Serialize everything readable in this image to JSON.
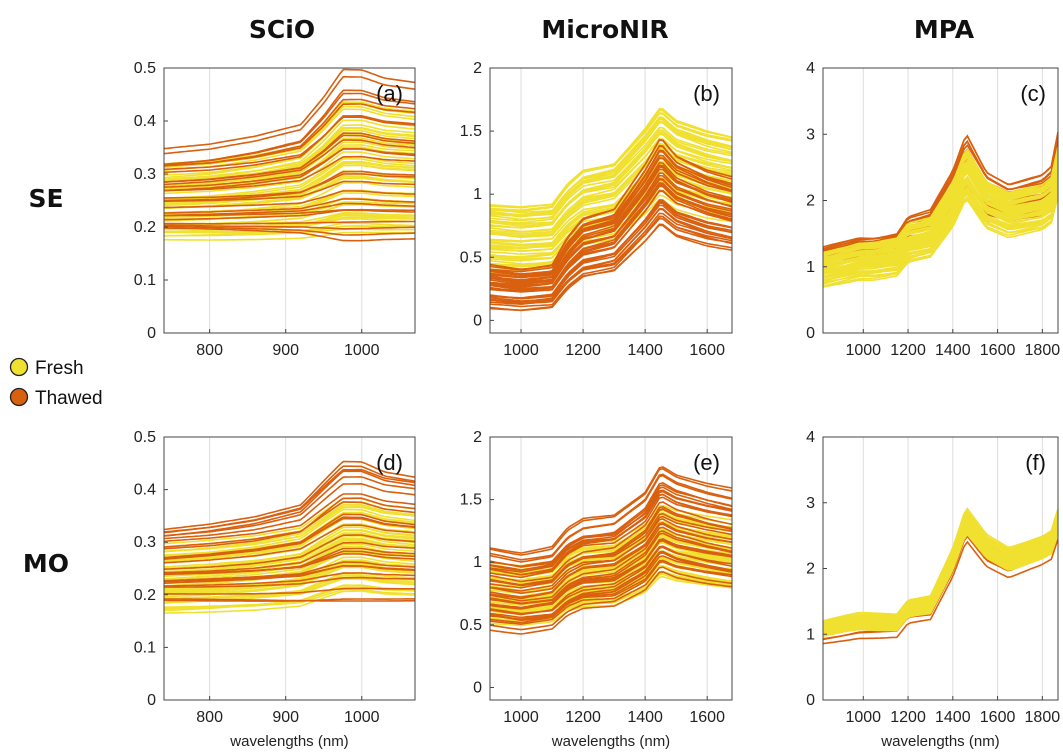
{
  "column_titles": [
    "SCiO",
    "MicroNIR",
    "MPA"
  ],
  "row_titles": [
    "SE",
    "MO"
  ],
  "legend": [
    {
      "label": "Fresh",
      "color": "#f0e030"
    },
    {
      "label": "Thawed",
      "color": "#d9600f"
    }
  ],
  "chart_data": [
    {
      "panel": "(a)",
      "type": "line",
      "xlabel": "",
      "xlim": [
        740,
        1070
      ],
      "ylim": [
        0,
        0.5
      ],
      "xticks": [
        800,
        900,
        1000
      ],
      "yticks": [
        0,
        0.1,
        0.2,
        0.3,
        0.4,
        0.5
      ],
      "xtick_labels": [
        "800",
        "900",
        "1000"
      ],
      "ytick_labels": [
        "0",
        "0.1",
        "0.2",
        "0.3",
        "0.4",
        "0.5"
      ],
      "shape": {
        "x": [
          740,
          800,
          860,
          920,
          950,
          975,
          1000,
          1030,
          1070
        ],
        "y": [
          1.0,
          0.99,
          0.97,
          0.94,
          0.87,
          0.8,
          0.8,
          0.82,
          0.83
        ]
      },
      "series": [
        {
          "color": "#f0e030",
          "count": 55,
          "start": [
            0.19,
            0.43
          ],
          "end": [
            0.18,
            0.31
          ]
        },
        {
          "color": "#d9600f",
          "count": 26,
          "start": [
            0.17,
            0.49
          ],
          "end": [
            0.19,
            0.34
          ]
        }
      ]
    },
    {
      "panel": "(b)",
      "type": "line",
      "xlabel": "",
      "xlim": [
        900,
        1680
      ],
      "ylim": [
        -0.1,
        2
      ],
      "xticks": [
        1000,
        1200,
        1400,
        1600
      ],
      "yticks": [
        0,
        0.5,
        1,
        1.5,
        2
      ],
      "xtick_labels": [
        "1000",
        "1200",
        "1400",
        "1600"
      ],
      "ytick_labels": [
        "0",
        "0.5",
        "1",
        "1.5",
        "2"
      ],
      "shape": {
        "x": [
          900,
          1000,
          1100,
          1150,
          1200,
          1300,
          1400,
          1450,
          1500,
          1600,
          1680
        ],
        "y": [
          0.3,
          0.28,
          0.3,
          0.45,
          0.55,
          0.6,
          0.85,
          1.0,
          0.9,
          0.82,
          0.78
        ]
      },
      "series": [
        {
          "color": "#f0e030",
          "count": 50,
          "start": [
            0.4,
            0.9
          ],
          "end": [
            1.0,
            1.7
          ]
        },
        {
          "color": "#d9600f",
          "count": 38,
          "start": [
            0.1,
            0.4
          ],
          "end": [
            0.78,
            1.45
          ]
        }
      ]
    },
    {
      "panel": "(c)",
      "type": "line",
      "xlabel": "",
      "xlim": [
        820,
        1870
      ],
      "ylim": [
        0,
        4
      ],
      "xticks": [
        1000,
        1200,
        1400,
        1600,
        1800
      ],
      "yticks": [
        0,
        1,
        2,
        3,
        4
      ],
      "xtick_labels": [
        "1000",
        "1200",
        "1400",
        "1600",
        "1800"
      ],
      "ytick_labels": [
        "0",
        "1",
        "2",
        "3",
        "4"
      ],
      "shape": {
        "x": [
          820,
          980,
          1050,
          1150,
          1200,
          1300,
          1400,
          1460,
          1550,
          1650,
          1800,
          1840,
          1870
        ],
        "y": [
          0.45,
          0.5,
          0.5,
          0.52,
          0.6,
          0.63,
          0.82,
          1.0,
          0.82,
          0.76,
          0.8,
          0.84,
          1.0
        ]
      },
      "series": [
        {
          "color": "#d9600f",
          "count": 20,
          "start": [
            1.1,
            1.25
          ],
          "end": [
            2.05,
            3.05
          ]
        },
        {
          "color": "#f0e030",
          "count": 60,
          "start": [
            0.75,
            1.2
          ],
          "end": [
            2.1,
            2.8
          ]
        }
      ]
    },
    {
      "panel": "(d)",
      "type": "line",
      "xlabel": "wavelengths (nm)",
      "xlim": [
        740,
        1070
      ],
      "ylim": [
        0,
        0.5
      ],
      "xticks": [
        800,
        900,
        1000
      ],
      "yticks": [
        0,
        0.1,
        0.2,
        0.3,
        0.4,
        0.5
      ],
      "xtick_labels": [
        "800",
        "900",
        "1000"
      ],
      "ytick_labels": [
        "0",
        "0.1",
        "0.2",
        "0.3",
        "0.4",
        "0.5"
      ],
      "shape": {
        "x": [
          740,
          800,
          860,
          920,
          950,
          975,
          1000,
          1030,
          1070
        ],
        "y": [
          1.0,
          0.98,
          0.95,
          0.9,
          0.8,
          0.72,
          0.72,
          0.76,
          0.78
        ]
      },
      "series": [
        {
          "color": "#f0e030",
          "count": 55,
          "start": [
            0.21,
            0.38
          ],
          "end": [
            0.17,
            0.29
          ]
        },
        {
          "color": "#d9600f",
          "count": 26,
          "start": [
            0.19,
            0.46
          ],
          "end": [
            0.19,
            0.33
          ]
        }
      ]
    },
    {
      "panel": "(e)",
      "type": "line",
      "xlabel": "wavelengths (nm)",
      "xlim": [
        900,
        1680
      ],
      "ylim": [
        -0.1,
        2
      ],
      "xticks": [
        1000,
        1200,
        1400,
        1600
      ],
      "yticks": [
        0,
        0.5,
        1,
        1.5,
        2
      ],
      "xtick_labels": [
        "1000",
        "1200",
        "1400",
        "1600"
      ],
      "ytick_labels": [
        "0",
        "0.5",
        "1",
        "1.5",
        "2"
      ],
      "shape": {
        "x": [
          900,
          1000,
          1100,
          1150,
          1200,
          1300,
          1400,
          1450,
          1500,
          1600,
          1680
        ],
        "y": [
          0.55,
          0.52,
          0.55,
          0.65,
          0.7,
          0.72,
          0.85,
          1.0,
          0.95,
          0.9,
          0.87
        ]
      },
      "series": [
        {
          "color": "#f0e030",
          "count": 50,
          "start": [
            0.5,
            0.95
          ],
          "end": [
            0.9,
            1.45
          ]
        },
        {
          "color": "#d9600f",
          "count": 38,
          "start": [
            0.45,
            1.05
          ],
          "end": [
            0.95,
            1.75
          ]
        }
      ]
    },
    {
      "panel": "(f)",
      "type": "line",
      "xlabel": "wavelengths (nm)",
      "xlim": [
        820,
        1870
      ],
      "ylim": [
        0,
        4
      ],
      "xticks": [
        1000,
        1200,
        1400,
        1600,
        1800
      ],
      "yticks": [
        0,
        1,
        2,
        3,
        4
      ],
      "xtick_labels": [
        "1000",
        "1200",
        "1400",
        "1600",
        "1800"
      ],
      "ytick_labels": [
        "0",
        "1",
        "2",
        "3",
        "4"
      ],
      "shape": {
        "x": [
          820,
          980,
          1050,
          1150,
          1200,
          1300,
          1400,
          1460,
          1550,
          1650,
          1800,
          1840,
          1870
        ],
        "y": [
          0.38,
          0.42,
          0.42,
          0.42,
          0.5,
          0.52,
          0.78,
          1.0,
          0.85,
          0.78,
          0.85,
          0.88,
          1.0
        ]
      },
      "series": [
        {
          "color": "#d9600f",
          "count": 14,
          "start": [
            0.92,
            1.15
          ],
          "end": [
            2.5,
            2.85
          ]
        },
        {
          "color": "#f0e030",
          "count": 60,
          "start": [
            1.0,
            1.18
          ],
          "end": [
            2.55,
            2.9
          ]
        }
      ]
    }
  ]
}
